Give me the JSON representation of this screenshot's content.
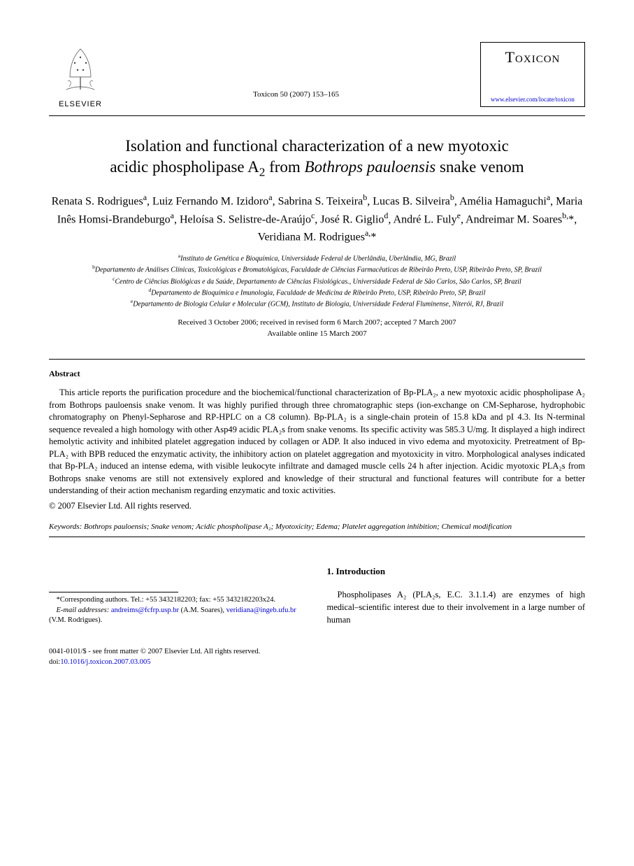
{
  "header": {
    "publisher": "ELSEVIER",
    "citation": "Toxicon 50 (2007) 153–165",
    "journal_name": "Toxicon",
    "journal_url": "www.elsevier.com/locate/toxicon"
  },
  "title_line1": "Isolation and functional characterization of a new myotoxic",
  "title_line2_pre": "acidic phospholipase A",
  "title_line2_sub": "2",
  "title_line2_mid": " from ",
  "title_line2_ital": "Bothrops pauloensis",
  "title_line2_post": " snake venom",
  "authors_html": "Renata S. Rodrigues<sup>a</sup>, Luiz Fernando M. Izidoro<sup>a</sup>, Sabrina S. Teixeira<sup>b</sup>, Lucas B. Silveira<sup>b</sup>, Amélia Hamaguchi<sup>a</sup>, Maria Inês Homsi-Brandeburgo<sup>a</sup>, Heloísa S. Selistre-de-Araújo<sup>c</sup>, José R. Giglio<sup>d</sup>, André L. Fuly<sup>e</sup>, Andreimar M. Soares<sup>b,</sup>*, Veridiana M. Rodrigues<sup>a,</sup>*",
  "affiliations": [
    {
      "sup": "a",
      "text": "Instituto de Genética e Bioquímica, Universidade Federal de Uberlândia, Uberlândia, MG, Brazil"
    },
    {
      "sup": "b",
      "text": "Departamento de Análises Clínicas, Toxicológicas e Bromatológicas, Faculdade de Ciências Farmacêuticas de Ribeirão Preto, USP, Ribeirão Preto, SP, Brazil"
    },
    {
      "sup": "c",
      "text": "Centro de Ciências Biológicas e da Saúde, Departamento de Ciências Fisiológicas., Universidade Federal de São Carlos, São Carlos, SP, Brazil"
    },
    {
      "sup": "d",
      "text": "Departamento de Bioquímica e Imunologia, Faculdade de Medicina de Ribeirão Preto, USP, Ribeirão Preto, SP, Brazil"
    },
    {
      "sup": "e",
      "text": "Departamento de Biologia Celular e Molecular (GCM), Instituto de Biologia, Universidade Federal Fluminense, Niterói, RJ, Brazil"
    }
  ],
  "dates_line1": "Received 3 October 2006; received in revised form 6 March 2007; accepted 7 March 2007",
  "dates_line2": "Available online 15 March 2007",
  "abstract": {
    "heading": "Abstract",
    "body": "This article reports the purification procedure and the biochemical/functional characterization of Bp-PLA₂, a new myotoxic acidic phospholipase A₂ from Bothrops pauloensis snake venom. It was highly purified through three chromatographic steps (ion-exchange on CM-Sepharose, hydrophobic chromatography on Phenyl-Sepharose and RP-HPLC on a C8 column). Bp-PLA₂ is a single-chain protein of 15.8 kDa and pI 4.3. Its N-terminal sequence revealed a high homology with other Asp49 acidic PLA₂s from snake venoms. Its specific activity was 585.3 U/mg. It displayed a high indirect hemolytic activity and inhibited platelet aggregation induced by collagen or ADP. It also induced in vivo edema and myotoxicity. Pretreatment of Bp-PLA₂ with BPB reduced the enzymatic activity, the inhibitory action on platelet aggregation and myotoxicity in vitro. Morphological analyses indicated that Bp-PLA₂ induced an intense edema, with visible leukocyte infiltrate and damaged muscle cells 24 h after injection. Acidic myotoxic PLA₂s from Bothrops snake venoms are still not extensively explored and knowledge of their structural and functional features will contribute for a better understanding of their action mechanism regarding enzymatic and toxic activities.",
    "copyright": "© 2007 Elsevier Ltd. All rights reserved."
  },
  "keywords": {
    "label": "Keywords:",
    "text": " Bothrops pauloensis; Snake venom; Acidic phospholipase A₂; Myotoxicity; Edema; Platelet aggregation inhibition; Chemical modification"
  },
  "corresponding": {
    "text": "*Corresponding authors. Tel.: +55 3432182203; fax: +55 3432182203x24.",
    "emails_label": "E-mail addresses:",
    "email1": "andreims@fcfrp.usp.br",
    "email1_name": " (A.M. Soares), ",
    "email2": "veridiana@ingeb.ufu.br",
    "email2_name": " (V.M. Rodrigues)."
  },
  "intro": {
    "heading": "1. Introduction",
    "body": "Phospholipases A₂ (PLA₂s, E.C. 3.1.1.4) are enzymes of high medical–scientific interest due to their involvement in a large number of human"
  },
  "footer": {
    "line1": "0041-0101/$ - see front matter © 2007 Elsevier Ltd. All rights reserved.",
    "doi_label": "doi:",
    "doi": "10.1016/j.toxicon.2007.03.005"
  },
  "colors": {
    "text": "#000000",
    "link": "#0000cc",
    "background": "#ffffff",
    "rule": "#000000"
  },
  "fonts": {
    "body_family": "Georgia, Times New Roman, serif",
    "title_size_pt": 17,
    "author_size_pt": 12,
    "body_size_pt": 9.5,
    "affil_size_pt": 7.5
  }
}
